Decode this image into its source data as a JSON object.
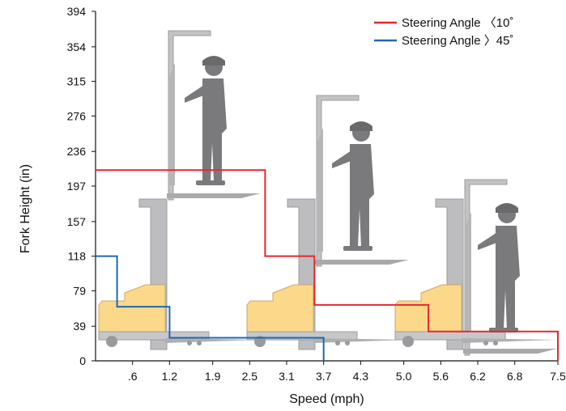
{
  "chart_data": {
    "type": "line",
    "title": "",
    "xlabel": "Speed (mph)",
    "ylabel": "Fork Height (in)",
    "x_ticks": [
      ".6",
      "1.2",
      "1.9",
      "2.5",
      "3.1",
      "3.7",
      "4.3",
      "5.0",
      "5.6",
      "6.2",
      "6.8",
      "7.5"
    ],
    "y_ticks": [
      "0",
      "39",
      "79",
      "118",
      "157",
      "197",
      "236",
      "276",
      "315",
      "354",
      "394"
    ],
    "xlim": [
      0,
      7.5
    ],
    "ylim": [
      0,
      394
    ],
    "legend_position": "top-right",
    "grid": false,
    "series": [
      {
        "name": "Steering Angle 〈10˚",
        "color": "#e8262e",
        "x": [
          0,
          2.75,
          2.75,
          3.55,
          3.55,
          5.4,
          5.4,
          7.5,
          7.5
        ],
        "y": [
          215,
          215,
          118,
          118,
          63,
          63,
          33,
          33,
          0
        ]
      },
      {
        "name": "Steering Angle 〉45˚",
        "color": "#1e68b4",
        "x": [
          0,
          0.35,
          0.35,
          1.2,
          1.2,
          3.7,
          3.7
        ],
        "y": [
          118,
          118,
          61,
          61,
          26,
          26,
          0
        ]
      }
    ]
  }
}
